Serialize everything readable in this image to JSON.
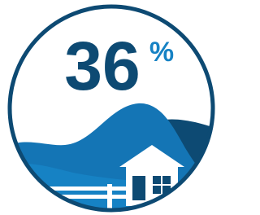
{
  "stat": {
    "value": "36",
    "unit": "%"
  }
}
